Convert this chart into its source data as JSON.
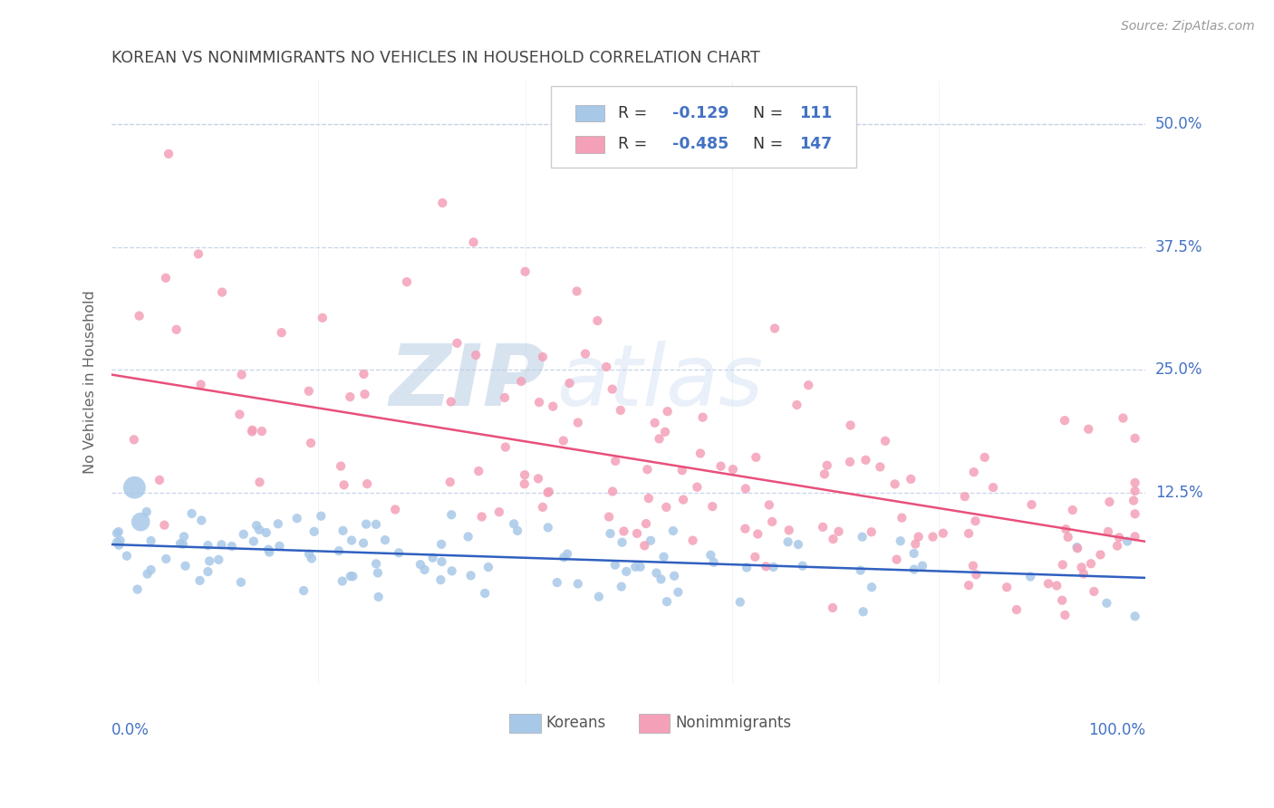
{
  "title": "KOREAN VS NONIMMIGRANTS NO VEHICLES IN HOUSEHOLD CORRELATION CHART",
  "source": "Source: ZipAtlas.com",
  "ylabel": "No Vehicles in Household",
  "ytick_labels": [
    "12.5%",
    "25.0%",
    "37.5%",
    "50.0%"
  ],
  "ytick_values": [
    0.125,
    0.25,
    0.375,
    0.5
  ],
  "xlim": [
    0,
    1.0
  ],
  "ylim": [
    -0.07,
    0.545
  ],
  "korean_R": -0.129,
  "korean_N": 111,
  "nonimm_R": -0.485,
  "nonimm_N": 147,
  "korean_color": "#a8c8e8",
  "nonimm_color": "#f4a0b8",
  "korean_line_color": "#3060c0",
  "nonimm_line_color": "#e8507a",
  "watermark_zip": "ZIP",
  "watermark_atlas": "atlas",
  "legend_label_korean": "Koreans",
  "legend_label_nonimm": "Nonimmigrants",
  "background_color": "#ffffff",
  "grid_color": "#c8d4e8",
  "title_color": "#444444",
  "axis_label_color": "#4472c4",
  "source_color": "#999999",
  "korean_line_y0": 0.072,
  "korean_line_y1": 0.038,
  "nonimm_line_y0": 0.245,
  "nonimm_line_y1": 0.075
}
